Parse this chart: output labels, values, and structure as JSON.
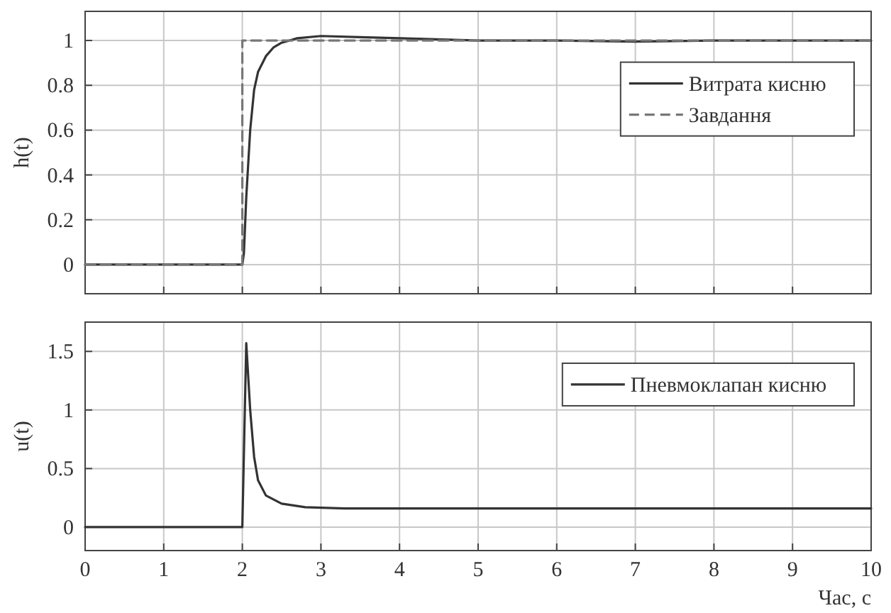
{
  "chart_data": [
    {
      "type": "line",
      "ylabel": "h(t)",
      "xlim": [
        0,
        10
      ],
      "xticks": [
        0,
        1,
        2,
        3,
        4,
        5,
        6,
        7,
        8,
        9,
        10
      ],
      "ylim": [
        -0.13,
        1.13
      ],
      "yticks": [
        0,
        0.2,
        0.4,
        0.6,
        0.8,
        1
      ],
      "grid": true,
      "legend": "top right",
      "tick_labels": "y",
      "series": [
        {
          "name": "Витрата кисню",
          "color": "#333333",
          "line_style": "solid",
          "x": [
            0,
            2,
            2.02,
            2.05,
            2.1,
            2.15,
            2.2,
            2.3,
            2.4,
            2.5,
            2.7,
            3,
            3.5,
            4,
            5,
            6,
            7,
            8,
            10
          ],
          "values": [
            0,
            0,
            0.05,
            0.3,
            0.6,
            0.78,
            0.86,
            0.93,
            0.97,
            0.99,
            1.01,
            1.02,
            1.015,
            1.01,
            1,
            1,
            0.995,
            1,
            1
          ]
        },
        {
          "name": "Завдання",
          "color": "#777777",
          "line_style": "dashed",
          "x": [
            0,
            2,
            2,
            10
          ],
          "values": [
            0,
            0,
            1,
            1
          ]
        }
      ]
    },
    {
      "type": "line",
      "ylabel": "u(t)",
      "xlabel": "Час, с",
      "xlim": [
        0,
        10
      ],
      "xticks": [
        0,
        1,
        2,
        3,
        4,
        5,
        6,
        7,
        8,
        9,
        10
      ],
      "ylim": [
        -0.2,
        1.75
      ],
      "yticks": [
        0,
        0.5,
        1,
        1.5
      ],
      "grid": true,
      "legend": "top right",
      "series": [
        {
          "name": "Пневмоклапан кисню",
          "color": "#333333",
          "line_style": "solid",
          "x": [
            0,
            2,
            2.05,
            2.1,
            2.15,
            2.2,
            2.3,
            2.5,
            2.8,
            3.3,
            5,
            7,
            10
          ],
          "values": [
            0,
            0,
            1.57,
            1,
            0.6,
            0.4,
            0.27,
            0.2,
            0.17,
            0.16,
            0.16,
            0.16,
            0.16
          ]
        }
      ]
    }
  ]
}
